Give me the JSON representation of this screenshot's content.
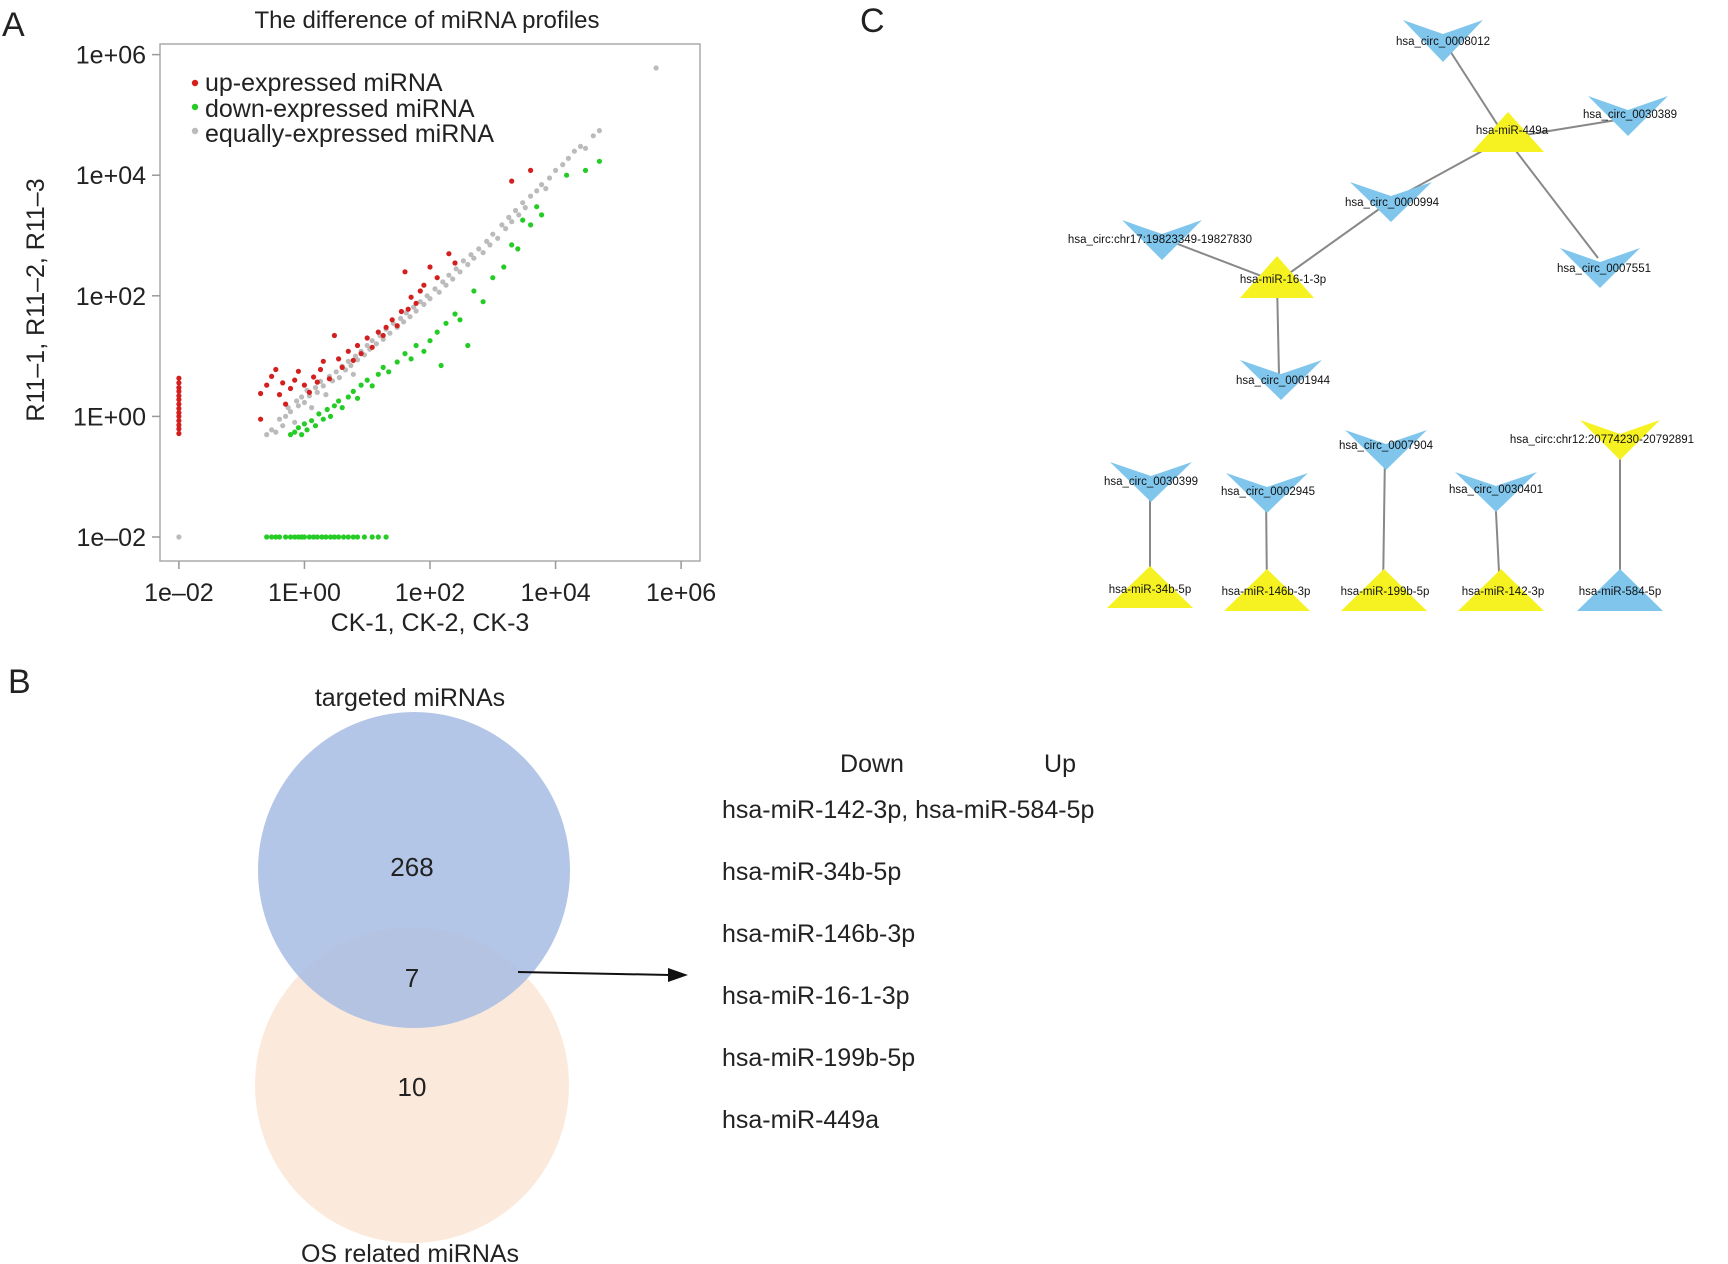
{
  "panels": {
    "a": "A",
    "b": "B",
    "c": "C"
  },
  "chart_data": [
    {
      "type": "scatter",
      "title": "The difference of miRNA profiles",
      "xlabel": "CK-1, CK-2, CK-3",
      "ylabel": "R11–1, R11–2, R11–3",
      "scale": "log10",
      "xlim": [
        0.005,
        2000000
      ],
      "ylim": [
        0.004,
        1500000
      ],
      "x_ticks": [
        {
          "value": 0.01,
          "label": "1e–02"
        },
        {
          "value": 1,
          "label": "1E+00"
        },
        {
          "value": 100,
          "label": "1e+02"
        },
        {
          "value": 10000,
          "label": "1e+04"
        },
        {
          "value": 1000000,
          "label": "1e+06"
        }
      ],
      "y_ticks": [
        {
          "value": 0.01,
          "label": "1e–02"
        },
        {
          "value": 1,
          "label": "1E+00"
        },
        {
          "value": 100,
          "label": "1e+02"
        },
        {
          "value": 10000,
          "label": "1e+04"
        },
        {
          "value": 1000000,
          "label": "1e+06"
        }
      ],
      "grid": false,
      "legend_position": "top-left",
      "series": [
        {
          "name": "up-expressed miRNA",
          "color": "#d41f1f",
          "points": [
            [
              0.01,
              4.3
            ],
            [
              0.01,
              3.6
            ],
            [
              0.01,
              3.0
            ],
            [
              0.01,
              2.6
            ],
            [
              0.01,
              2.2
            ],
            [
              0.01,
              1.9
            ],
            [
              0.01,
              1.6
            ],
            [
              0.01,
              1.35
            ],
            [
              0.01,
              1.15
            ],
            [
              0.01,
              1.0
            ],
            [
              0.01,
              0.85
            ],
            [
              0.01,
              0.72
            ],
            [
              0.01,
              0.62
            ],
            [
              0.01,
              0.52
            ],
            [
              0.2,
              2.4
            ],
            [
              0.2,
              0.9
            ],
            [
              0.25,
              3.3
            ],
            [
              0.3,
              4.6
            ],
            [
              0.35,
              6.0
            ],
            [
              0.4,
              2.3
            ],
            [
              0.45,
              3.6
            ],
            [
              0.5,
              1.6
            ],
            [
              0.6,
              2.9
            ],
            [
              0.7,
              4.0
            ],
            [
              0.8,
              5.6
            ],
            [
              1.0,
              3.3
            ],
            [
              1.2,
              2.5
            ],
            [
              1.4,
              4.5
            ],
            [
              1.6,
              3.7
            ],
            [
              1.8,
              6.0
            ],
            [
              2.0,
              8.2
            ],
            [
              2.5,
              4.2
            ],
            [
              3.0,
              22
            ],
            [
              3.5,
              9
            ],
            [
              4.0,
              6.5
            ],
            [
              5.0,
              12
            ],
            [
              6.0,
              8.5
            ],
            [
              7.0,
              15
            ],
            [
              8.0,
              11
            ],
            [
              10,
              20
            ],
            [
              12,
              14
            ],
            [
              15,
              25
            ],
            [
              18,
              22
            ],
            [
              20,
              30
            ],
            [
              25,
              40
            ],
            [
              30,
              32
            ],
            [
              35,
              55
            ],
            [
              40,
              250
            ],
            [
              45,
              60
            ],
            [
              50,
              95
            ],
            [
              60,
              75
            ],
            [
              70,
              120
            ],
            [
              80,
              150
            ],
            [
              100,
              300
            ],
            [
              130,
              200
            ],
            [
              200,
              500
            ],
            [
              250,
              350
            ],
            [
              2000,
              8000
            ],
            [
              4000,
              12000
            ]
          ]
        },
        {
          "name": "down-expressed miRNA",
          "color": "#25cc25",
          "points": [
            [
              0.25,
              0.01
            ],
            [
              0.3,
              0.01
            ],
            [
              0.35,
              0.01
            ],
            [
              0.4,
              0.01
            ],
            [
              0.5,
              0.01
            ],
            [
              0.6,
              0.01
            ],
            [
              0.7,
              0.01
            ],
            [
              0.8,
              0.01
            ],
            [
              0.9,
              0.01
            ],
            [
              1.0,
              0.01
            ],
            [
              1.2,
              0.01
            ],
            [
              1.4,
              0.01
            ],
            [
              1.6,
              0.01
            ],
            [
              1.9,
              0.01
            ],
            [
              2.2,
              0.01
            ],
            [
              2.6,
              0.01
            ],
            [
              3.0,
              0.01
            ],
            [
              3.5,
              0.01
            ],
            [
              4.2,
              0.01
            ],
            [
              5.0,
              0.01
            ],
            [
              6.0,
              0.01
            ],
            [
              7.0,
              0.01
            ],
            [
              9.0,
              0.01
            ],
            [
              12,
              0.01
            ],
            [
              15,
              0.01
            ],
            [
              20,
              0.01
            ],
            [
              0.6,
              0.5
            ],
            [
              0.7,
              0.55
            ],
            [
              0.8,
              0.65
            ],
            [
              0.9,
              0.5
            ],
            [
              1.0,
              0.75
            ],
            [
              1.1,
              0.6
            ],
            [
              1.3,
              0.85
            ],
            [
              1.5,
              0.7
            ],
            [
              1.7,
              1.1
            ],
            [
              2.0,
              0.9
            ],
            [
              2.3,
              1.3
            ],
            [
              2.6,
              1.0
            ],
            [
              3.0,
              1.5
            ],
            [
              3.5,
              1.8
            ],
            [
              4.0,
              1.4
            ],
            [
              5.0,
              2.1
            ],
            [
              6.0,
              2.6
            ],
            [
              7.0,
              2.0
            ],
            [
              8.0,
              3.3
            ],
            [
              10,
              4.0
            ],
            [
              12,
              3.2
            ],
            [
              15,
              5.0
            ],
            [
              18,
              6.5
            ],
            [
              22,
              5.5
            ],
            [
              30,
              8
            ],
            [
              40,
              11
            ],
            [
              50,
              9
            ],
            [
              60,
              15
            ],
            [
              80,
              12
            ],
            [
              100,
              18
            ],
            [
              130,
              25
            ],
            [
              150,
              7
            ],
            [
              180,
              35
            ],
            [
              250,
              50
            ],
            [
              300,
              40
            ],
            [
              400,
              15
            ],
            [
              500,
              120
            ],
            [
              700,
              80
            ],
            [
              1000,
              200
            ],
            [
              1500,
              300
            ],
            [
              2000,
              700
            ],
            [
              2500,
              600
            ],
            [
              3000,
              1800
            ],
            [
              4000,
              1500
            ],
            [
              5000,
              3000
            ],
            [
              6000,
              2200
            ],
            [
              15000,
              10000
            ],
            [
              30000,
              12000
            ],
            [
              50000,
              17000
            ]
          ]
        },
        {
          "name": "equally-expressed miRNA",
          "color": "#bbbbbb",
          "points": [
            [
              0.01,
              0.01
            ],
            [
              0.25,
              0.5
            ],
            [
              0.3,
              0.6
            ],
            [
              0.35,
              0.55
            ],
            [
              0.4,
              0.9
            ],
            [
              0.45,
              0.7
            ],
            [
              0.5,
              1.0
            ],
            [
              0.55,
              1.4
            ],
            [
              0.6,
              1.2
            ],
            [
              0.7,
              0.8
            ],
            [
              0.75,
              1.8
            ],
            [
              0.8,
              1.5
            ],
            [
              0.9,
              2.1
            ],
            [
              1.0,
              1.7
            ],
            [
              1.1,
              2.7
            ],
            [
              1.2,
              2.2
            ],
            [
              1.3,
              1.4
            ],
            [
              1.5,
              3.0
            ],
            [
              1.6,
              2.5
            ],
            [
              1.8,
              3.8
            ],
            [
              2.0,
              3.2
            ],
            [
              2.2,
              2.3
            ],
            [
              2.5,
              4.6
            ],
            [
              2.8,
              3.9
            ],
            [
              3.2,
              5.5
            ],
            [
              3.6,
              4.4
            ],
            [
              4.0,
              6.8
            ],
            [
              4.5,
              5.9
            ],
            [
              5.0,
              8.2
            ],
            [
              5.5,
              7.0
            ],
            [
              6.0,
              5.0
            ],
            [
              6.5,
              10
            ],
            [
              7.0,
              8.7
            ],
            [
              8.0,
              12
            ],
            [
              9.0,
              10.5
            ],
            [
              10,
              15
            ],
            [
              11,
              13
            ],
            [
              12,
              18
            ],
            [
              14,
              16
            ],
            [
              16,
              22
            ],
            [
              18,
              19
            ],
            [
              20,
              28
            ],
            [
              23,
              24
            ],
            [
              26,
              35
            ],
            [
              30,
              30
            ],
            [
              34,
              42
            ],
            [
              38,
              37
            ],
            [
              42,
              52
            ],
            [
              48,
              45
            ],
            [
              55,
              65
            ],
            [
              60,
              56
            ],
            [
              70,
              80
            ],
            [
              80,
              72
            ],
            [
              90,
              100
            ],
            [
              100,
              90
            ],
            [
              120,
              130
            ],
            [
              140,
              115
            ],
            [
              160,
              170
            ],
            [
              180,
              150
            ],
            [
              200,
              220
            ],
            [
              230,
              190
            ],
            [
              260,
              280
            ],
            [
              300,
              250
            ],
            [
              340,
              380
            ],
            [
              400,
              330
            ],
            [
              450,
              480
            ],
            [
              500,
              420
            ],
            [
              600,
              600
            ],
            [
              700,
              520
            ],
            [
              800,
              800
            ],
            [
              900,
              700
            ],
            [
              1000,
              1050
            ],
            [
              1200,
              900
            ],
            [
              1400,
              1500
            ],
            [
              1600,
              1300
            ],
            [
              1800,
              2000
            ],
            [
              2000,
              1700
            ],
            [
              2300,
              2600
            ],
            [
              2600,
              2200
            ],
            [
              3000,
              3500
            ],
            [
              3300,
              2900
            ],
            [
              4000,
              4500
            ],
            [
              5000,
              5500
            ],
            [
              6000,
              7000
            ],
            [
              7000,
              6000
            ],
            [
              8000,
              9000
            ],
            [
              10000,
              12000
            ],
            [
              13000,
              15000
            ],
            [
              16000,
              19000
            ],
            [
              20000,
              25000
            ],
            [
              25000,
              30000
            ],
            [
              30000,
              28000
            ],
            [
              40000,
              45000
            ],
            [
              50000,
              55000
            ],
            [
              400000,
              600000
            ]
          ]
        }
      ]
    },
    {
      "type": "venn",
      "sets": [
        {
          "name": "targeted miRNAs",
          "only": 268,
          "color": "#b0c3e6"
        },
        {
          "name": "OS related miRNAs",
          "only": 10,
          "color": "#fbe9d9"
        }
      ],
      "intersection": 7
    }
  ],
  "mirna_list": {
    "header_down": "Down",
    "header_up": "Up",
    "items": [
      "hsa-miR-142-3p, hsa-miR-584-5p",
      "hsa-miR-34b-5p",
      "hsa-miR-146b-3p",
      "hsa-miR-16-1-3p",
      "hsa-miR-199b-5p",
      "hsa-miR-449a"
    ]
  },
  "network": {
    "colors": {
      "circ": "#80c6ec",
      "mirna_up": "#f6f221",
      "mirna_down": "#80c6ec",
      "circ_alt": "#f6f221",
      "edge": "#888888"
    },
    "labels": {
      "circ_0008012": "hsa_circ_0008012",
      "circ_0030389": "hsa_circ_0030389",
      "mir449a": "hsa-miR-449a",
      "circ_0000994": "hsa_circ_0000994",
      "circ_chr17": "hsa_circ:chr17:19823349-19827830",
      "mir16": "hsa-miR-16-1-3p",
      "circ_0007551": "hsa_circ_0007551",
      "circ_0001944": "hsa_circ_0001944",
      "circ_0030399": "hsa_circ_0030399",
      "circ_0002945": "hsa_circ_0002945",
      "circ_0007904": "hsa_circ_0007904",
      "circ_0030401": "hsa_circ_0030401",
      "circ_chr12": "hsa_circ:chr12:20774230-20792891",
      "mir34b": "hsa-miR-34b-5p",
      "mir146b": "hsa-miR-146b-3p",
      "mir199b": "hsa-miR-199b-5p",
      "mir142": "hsa-miR-142-3p",
      "mir584": "hsa-miR-584-5p"
    }
  }
}
